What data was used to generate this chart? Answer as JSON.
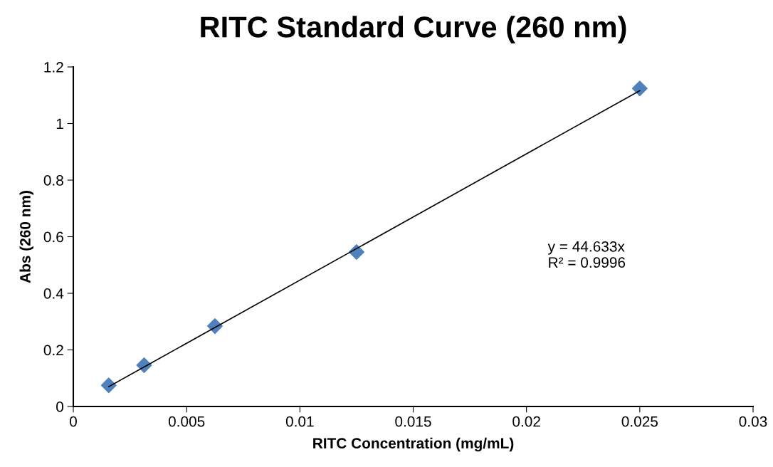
{
  "chart_data": {
    "type": "scatter",
    "title": "RITC Standard Curve (260 nm)",
    "xlabel": "RITC Concentration (mg/mL)",
    "ylabel": "Abs (260 nm)",
    "x": [
      0.0015625,
      0.003125,
      0.00625,
      0.0125,
      0.025
    ],
    "series": [
      {
        "color": "#4f81bd",
        "marker": "diamond",
        "values": [
          0.075,
          0.146,
          0.284,
          0.546,
          1.124
        ]
      },
      {
        "type": "line",
        "color": "#000000",
        "marker": "none",
        "x": [
          0.0015625,
          0.025
        ],
        "values": [
          0.07,
          1.116
        ]
      }
    ],
    "annotations": [
      "y = 44.633x\nR² = 0.9996"
    ],
    "xlim": [
      0,
      0.03
    ],
    "xticks": [
      0,
      0.005,
      0.01,
      0.015,
      0.02,
      0.025,
      0.03
    ],
    "ylim": [
      0,
      1.2
    ],
    "yticks": [
      0,
      0.2,
      0.4,
      0.6,
      0.8,
      1,
      1.2
    ],
    "grid": false,
    "legend": false
  }
}
